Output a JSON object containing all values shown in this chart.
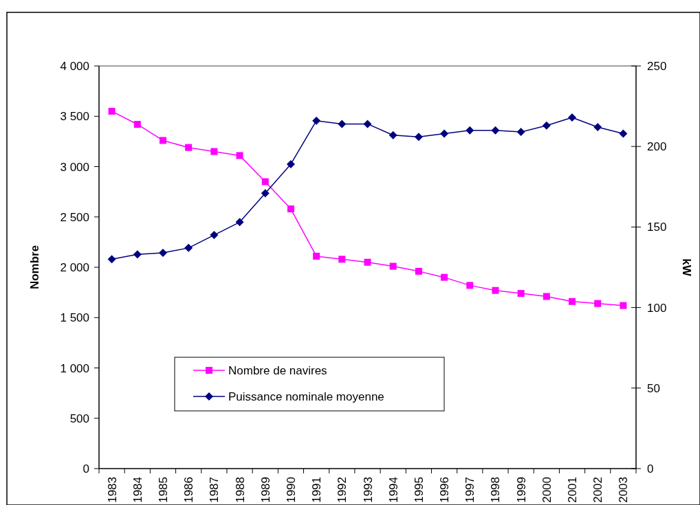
{
  "chart_data": {
    "type": "line",
    "xlabel": null,
    "ylabel": "Nombre",
    "y2label": "kW",
    "categories": [
      "1983",
      "1984",
      "1985",
      "1986",
      "1987",
      "1988",
      "1989",
      "1990",
      "1991",
      "1992",
      "1993",
      "1994",
      "1995",
      "1996",
      "1997",
      "1998",
      "1999",
      "2000",
      "2001",
      "2002",
      "2003"
    ],
    "series": [
      {
        "name": "Nombre de navires",
        "color": "#ff00ff",
        "marker": "square",
        "values": [
          3550,
          3420,
          3260,
          3190,
          3150,
          3110,
          2850,
          2580,
          2110,
          2080,
          2050,
          2010,
          1960,
          1900,
          1820,
          1770,
          1740,
          1710,
          1660,
          1640,
          1620
        ]
      },
      {
        "name": "Puissance nominale moyenne",
        "color": "#000080",
        "marker": "diamond",
        "axis": "y2",
        "values": [
          130,
          133,
          134,
          137,
          145,
          153,
          171,
          189,
          216,
          214,
          214,
          207,
          206,
          208,
          210,
          210,
          209,
          213,
          218,
          212,
          208
        ]
      }
    ],
    "ylim": [
      0,
      4000
    ],
    "yticks": [
      0,
      500,
      {
        "value": 1000,
        "label": "1 000"
      },
      {
        "value": 1500,
        "label": "1 500"
      },
      {
        "value": 2000,
        "label": "2 000"
      },
      {
        "value": 2500,
        "label": "2 500"
      },
      {
        "value": 3000,
        "label": "3 000"
      },
      {
        "value": 3500,
        "label": "3 500"
      },
      {
        "value": 4000,
        "label": "4 000"
      }
    ],
    "y2lim": [
      0,
      250
    ],
    "y2ticks": [
      0,
      50,
      100,
      150,
      200,
      250
    ],
    "legend": "bottom left",
    "grid": false
  }
}
